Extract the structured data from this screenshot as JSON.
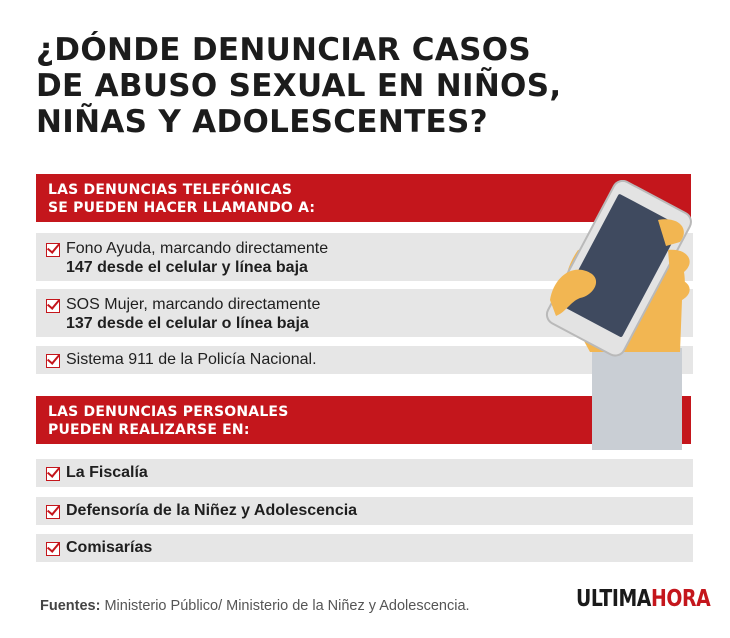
{
  "title": {
    "line1": "¿DÓNDE DENUNCIAR CASOS",
    "line2": "DE ABUSO SEXUAL EN NIÑOS,",
    "line3": "NIÑAS Y ADOLESCENTES?"
  },
  "section1": {
    "line1": "LAS DENUNCIAS TELEFÓNICAS",
    "line2": "SE PUEDEN HACER LLAMANDO A:",
    "items": [
      {
        "l1": "Fono Ayuda, marcando directamente",
        "l2": "147 desde el celular y línea baja"
      },
      {
        "l1": "SOS Mujer, marcando directamente",
        "l2": "137 desde el celular o línea baja"
      },
      {
        "l1": "Sistema 911 de la Policía Nacional."
      }
    ]
  },
  "section2": {
    "line1": "LAS DENUNCIAS PERSONALES",
    "line2": "PUEDEN REALIZARSE EN:",
    "items": [
      "La Fiscalía",
      "Defensoría de la Niñez y Adolescencia",
      "Comisarías"
    ]
  },
  "footer": {
    "label": "Fuentes:",
    "text": " Ministerio Público/ Ministerio de la Niñez y Adolescencia."
  },
  "logo": {
    "part1": "ULTIMA",
    "part2": "HORA"
  },
  "colors": {
    "accent": "#c4161c",
    "row": "#e6e6e6",
    "skin": "#f2b652",
    "phone": "#3f4a5f",
    "sleeve": "#c9ced4"
  },
  "icons": {
    "check": "checkbox-checked-icon",
    "illustration": "hand-holding-phone-icon"
  }
}
